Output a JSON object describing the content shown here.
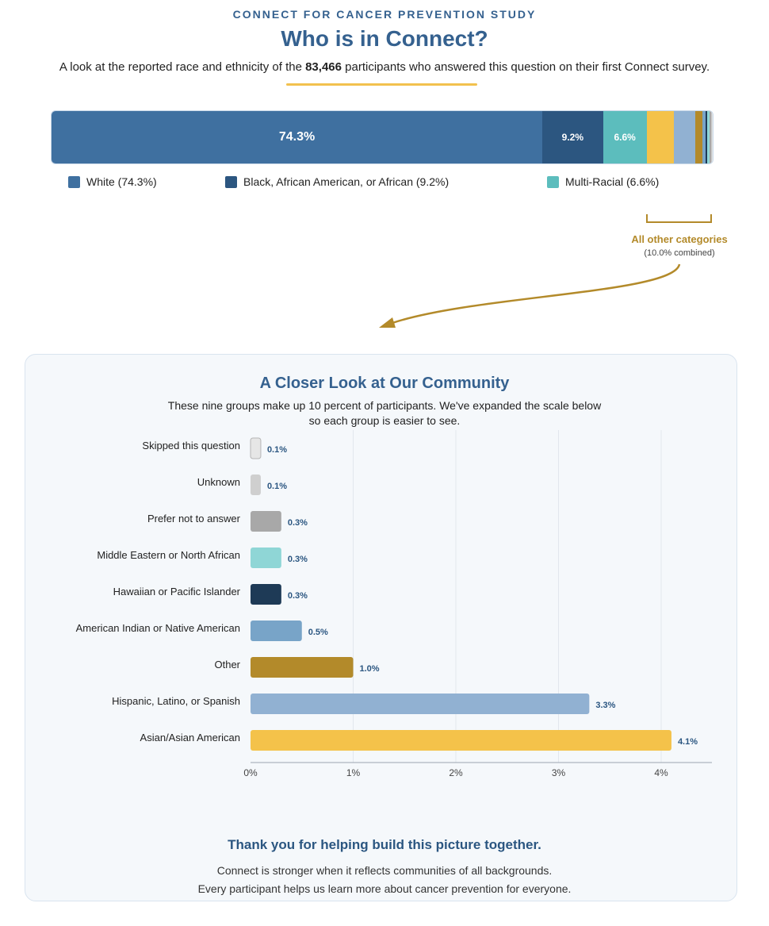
{
  "header": {
    "kicker": "CONNECT FOR CANCER PREVENTION STUDY",
    "title": "Who is in Connect?",
    "subtitle_pre": "A look at the reported race and ethnicity of the ",
    "subtitle_count": "83,466",
    "subtitle_post": " participants who answered this question on their first Connect survey."
  },
  "stacked_bar": {
    "segments": [
      {
        "name": "White",
        "value": 74.3,
        "label": "74.3%",
        "color": "#3f70a0"
      },
      {
        "name": "Black, African American, or African",
        "value": 9.2,
        "label": "9.2%",
        "color": "#2c5680"
      },
      {
        "name": "Multi-Racial",
        "value": 6.6,
        "label": "6.6%",
        "color": "#5cbdbd"
      },
      {
        "name": "Asian/Asian American",
        "value": 4.1,
        "label": "",
        "color": "#f4c24a"
      },
      {
        "name": "Hispanic, Latino, or Spanish",
        "value": 3.3,
        "label": "",
        "color": "#91b1d2"
      },
      {
        "name": "Other",
        "value": 1.0,
        "label": "",
        "color": "#b38a2a"
      },
      {
        "name": "American Indian or Native American",
        "value": 0.5,
        "label": "",
        "color": "#78a4c8"
      },
      {
        "name": "Hawaiian or Pacific Islander",
        "value": 0.3,
        "label": "",
        "color": "#1e3a56"
      },
      {
        "name": "Middle Eastern or North African",
        "value": 0.3,
        "label": "",
        "color": "#8fd6d6"
      },
      {
        "name": "Prefer not to answer",
        "value": 0.3,
        "label": "",
        "color": "#a8a8a8"
      },
      {
        "name": "Unknown",
        "value": 0.1,
        "label": "",
        "color": "#c8c8c8"
      },
      {
        "name": "Skipped this question",
        "value": 0.1,
        "label": "",
        "color": "#e2e2e2"
      }
    ],
    "legend": [
      {
        "label": "White (74.3%)",
        "color": "#3f70a0"
      },
      {
        "label": "Black, African American, or African (9.2%)",
        "color": "#2c5680"
      },
      {
        "label": "Multi-Racial (6.6%)",
        "color": "#5cbdbd"
      }
    ],
    "other_label": "All other categories",
    "other_sub": "(10.0% combined)",
    "accent_color": "#b38a2a"
  },
  "panel": {
    "title": "A Closer Look at Our Community",
    "desc_line1": "These nine groups make up 10 percent of participants. We've expanded the scale below",
    "desc_line2": "so each group is easier to see."
  },
  "chart_data": {
    "type": "bar",
    "orientation": "horizontal",
    "title": "A Closer Look at Our Community",
    "categories": [
      "Skipped this question",
      "Unknown",
      "Prefer not to answer",
      "Middle Eastern or North African",
      "Hawaiian or Pacific Islander",
      "American Indian or Native American",
      "Other",
      "Hispanic, Latino, or Spanish",
      "Asian/Asian American"
    ],
    "values": [
      0.1,
      0.1,
      0.3,
      0.3,
      0.3,
      0.5,
      1.0,
      3.3,
      4.1
    ],
    "value_labels": [
      "0.1%",
      "0.1%",
      "0.3%",
      "0.3%",
      "0.3%",
      "0.5%",
      "1.0%",
      "3.3%",
      "4.1%"
    ],
    "colors": [
      "#e6e6e6",
      "#cfcfcf",
      "#a8a8a8",
      "#8fd6d6",
      "#1e3a56",
      "#78a4c8",
      "#b38a2a",
      "#91b1d2",
      "#f4c24a"
    ],
    "xticks": [
      0,
      1,
      2,
      3,
      4
    ],
    "xtick_labels": [
      "0%",
      "1%",
      "2%",
      "3%",
      "4%"
    ],
    "xlim": [
      0,
      4.5
    ],
    "grid": true
  },
  "footer": {
    "title": "Thank you for helping build this picture together.",
    "line1": "Connect is stronger when it reflects communities of all backgrounds.",
    "line2": "Every participant helps us learn more about cancer prevention for everyone."
  }
}
